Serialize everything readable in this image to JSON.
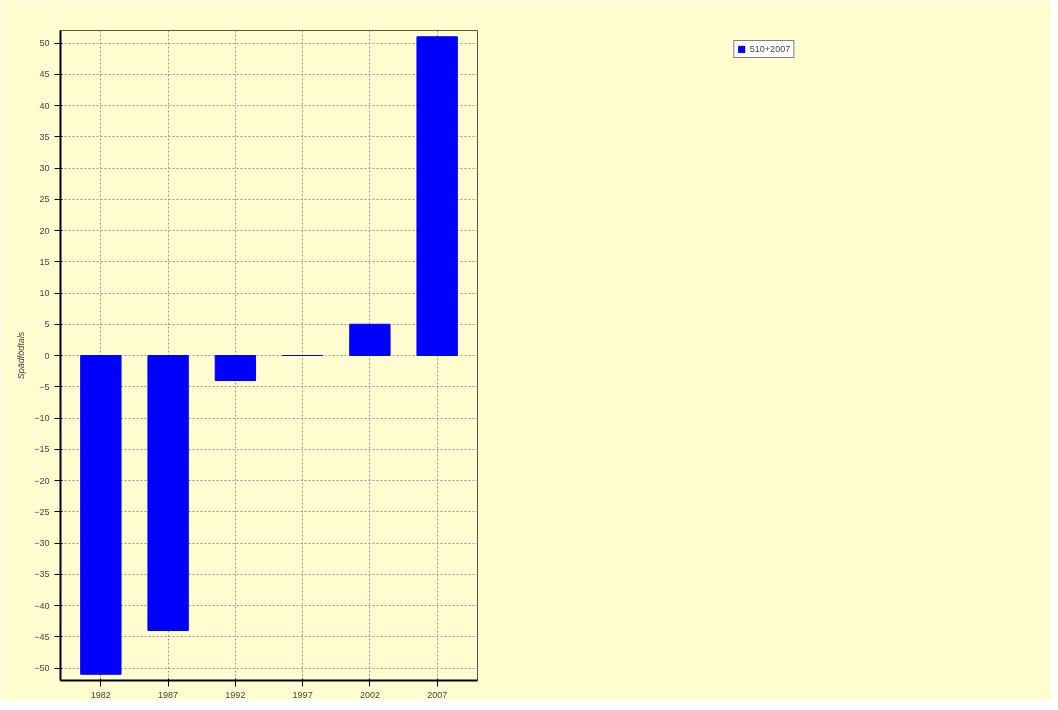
{
  "chart_data": {
    "type": "bar",
    "ylabel": "Spädfödtals",
    "categories": [
      "1982",
      "1987",
      "1992",
      "1997",
      "2002",
      "2007"
    ],
    "series": [
      {
        "name": "510+2007",
        "color": "#0000ff",
        "values": [
          -51,
          -44,
          -4,
          0,
          5,
          51
        ]
      }
    ],
    "ylim": [
      -52,
      52
    ],
    "yticks": [
      -50,
      -45,
      -40,
      -35,
      -30,
      -25,
      -20,
      -15,
      -10,
      -5,
      0,
      5,
      10,
      15,
      20,
      25,
      30,
      35,
      40,
      45,
      50
    ],
    "grid": true,
    "legend": "top right"
  }
}
